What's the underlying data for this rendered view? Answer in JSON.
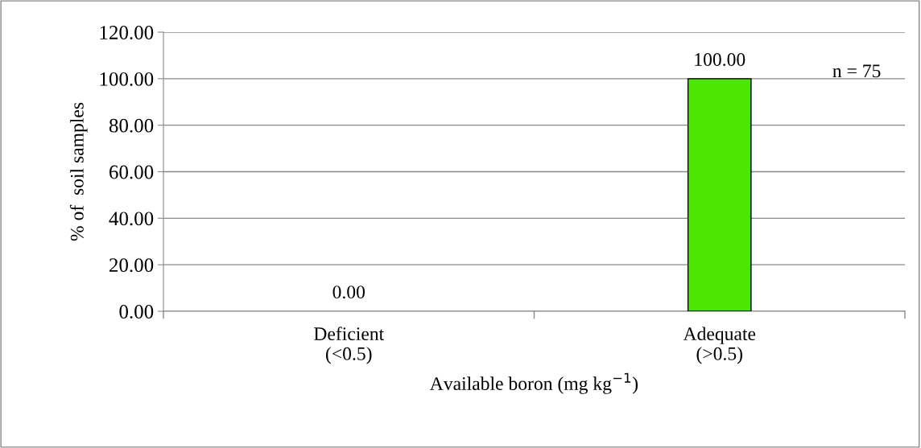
{
  "chart_data": {
    "type": "bar",
    "categories": [
      "Deficient\n(<0.5)",
      "Adequate\n(>0.5)"
    ],
    "values": [
      0,
      100
    ],
    "colors": [
      null,
      "#4ce600"
    ],
    "value_labels": [
      "0.00",
      "100.00"
    ],
    "xlabel": "Available boron (mg kg$^{−1}$)",
    "ylabel": "% of  soil samples",
    "ylim": [
      0,
      120
    ],
    "yticks": [
      {
        "value": 0,
        "label": "0.00"
      },
      {
        "value": 20,
        "label": "20.00"
      },
      {
        "value": 40,
        "label": "40.00"
      },
      {
        "value": 60,
        "label": "60.00"
      },
      {
        "value": 80,
        "label": "80.00"
      },
      {
        "value": 100,
        "label": "100.00"
      },
      {
        "value": 120,
        "label": "120.00"
      }
    ],
    "grid": "y",
    "annotations": [
      "n = 75"
    ]
  }
}
